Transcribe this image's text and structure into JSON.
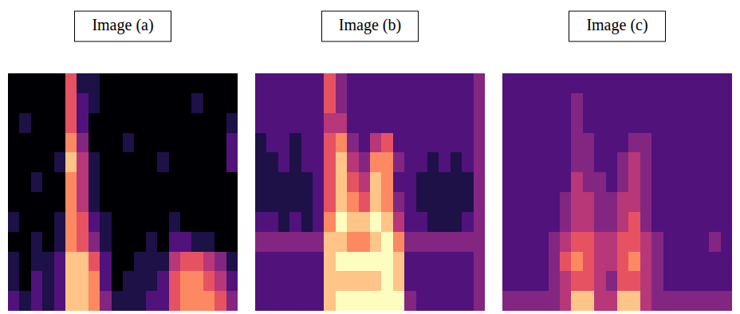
{
  "chart_data": [
    {
      "type": "heatmap",
      "title": "Image (a)",
      "tick_labels": false,
      "cells": [
        [
          1,
          1,
          1,
          1,
          1,
          6,
          2,
          2,
          1,
          1,
          1,
          1,
          1,
          1,
          1,
          1,
          1,
          1,
          1,
          1
        ],
        [
          1,
          1,
          1,
          1,
          1,
          6,
          3,
          2,
          1,
          1,
          1,
          1,
          1,
          1,
          1,
          1,
          2,
          1,
          1,
          1
        ],
        [
          1,
          2,
          1,
          1,
          1,
          6,
          3,
          1,
          1,
          1,
          1,
          1,
          1,
          1,
          1,
          1,
          1,
          1,
          1,
          2
        ],
        [
          1,
          1,
          1,
          1,
          1,
          7,
          4,
          1,
          1,
          1,
          2,
          1,
          1,
          1,
          1,
          1,
          1,
          1,
          1,
          3
        ],
        [
          1,
          1,
          1,
          1,
          2,
          8,
          5,
          2,
          1,
          1,
          1,
          1,
          1,
          2,
          1,
          1,
          1,
          1,
          1,
          3
        ],
        [
          1,
          1,
          2,
          1,
          1,
          7,
          5,
          2,
          1,
          1,
          1,
          1,
          1,
          1,
          1,
          1,
          1,
          1,
          1,
          1
        ],
        [
          1,
          1,
          1,
          1,
          1,
          7,
          5,
          2,
          1,
          1,
          1,
          1,
          1,
          1,
          1,
          1,
          1,
          1,
          1,
          1
        ],
        [
          2,
          1,
          1,
          1,
          2,
          7,
          6,
          3,
          2,
          1,
          1,
          1,
          1,
          1,
          2,
          1,
          1,
          1,
          1,
          1
        ],
        [
          1,
          1,
          2,
          1,
          2,
          7,
          6,
          4,
          2,
          1,
          1,
          1,
          2,
          1,
          3,
          3,
          2,
          2,
          1,
          1
        ],
        [
          2,
          1,
          2,
          2,
          3,
          8,
          8,
          6,
          3,
          1,
          1,
          2,
          2,
          2,
          5,
          6,
          6,
          5,
          4,
          2
        ],
        [
          2,
          1,
          3,
          2,
          3,
          8,
          8,
          7,
          3,
          1,
          2,
          2,
          2,
          3,
          6,
          7,
          7,
          6,
          5,
          3
        ],
        [
          3,
          2,
          3,
          2,
          3,
          8,
          8,
          7,
          4,
          2,
          2,
          2,
          3,
          3,
          6,
          7,
          7,
          7,
          6,
          4
        ]
      ]
    },
    {
      "type": "heatmap",
      "title": "Image (b)",
      "tick_labels": false,
      "cells": [
        [
          3,
          3,
          3,
          3,
          3,
          3,
          6,
          4,
          3,
          3,
          3,
          3,
          3,
          3,
          3,
          3,
          3,
          3,
          3,
          4
        ],
        [
          3,
          3,
          3,
          3,
          3,
          3,
          6,
          4,
          3,
          3,
          3,
          3,
          3,
          3,
          3,
          3,
          3,
          3,
          3,
          4
        ],
        [
          3,
          3,
          3,
          3,
          3,
          3,
          5,
          5,
          3,
          3,
          3,
          3,
          3,
          3,
          3,
          3,
          3,
          3,
          3,
          4
        ],
        [
          2,
          3,
          3,
          2,
          3,
          3,
          6,
          7,
          4,
          3,
          5,
          6,
          3,
          3,
          3,
          3,
          3,
          3,
          3,
          4
        ],
        [
          2,
          2,
          3,
          2,
          3,
          3,
          6,
          8,
          5,
          4,
          7,
          7,
          4,
          3,
          3,
          2,
          3,
          2,
          3,
          4
        ],
        [
          2,
          2,
          2,
          2,
          2,
          3,
          6,
          8,
          6,
          5,
          8,
          7,
          3,
          3,
          2,
          2,
          2,
          2,
          2,
          4
        ],
        [
          2,
          2,
          2,
          2,
          2,
          3,
          6,
          8,
          7,
          6,
          8,
          7,
          4,
          3,
          2,
          2,
          2,
          2,
          2,
          4
        ],
        [
          3,
          3,
          2,
          3,
          2,
          3,
          7,
          9,
          8,
          8,
          9,
          8,
          5,
          3,
          3,
          2,
          2,
          2,
          3,
          4
        ],
        [
          4,
          4,
          4,
          4,
          4,
          4,
          8,
          8,
          7,
          7,
          8,
          9,
          7,
          4,
          4,
          4,
          4,
          4,
          4,
          4
        ],
        [
          3,
          3,
          3,
          3,
          3,
          3,
          8,
          9,
          9,
          9,
          9,
          9,
          8,
          3,
          3,
          3,
          3,
          3,
          3,
          4
        ],
        [
          3,
          3,
          3,
          3,
          3,
          3,
          8,
          8,
          8,
          8,
          8,
          9,
          8,
          3,
          3,
          3,
          3,
          3,
          3,
          4
        ],
        [
          3,
          3,
          3,
          3,
          3,
          3,
          8,
          9,
          9,
          9,
          9,
          9,
          9,
          4,
          3,
          3,
          3,
          3,
          3,
          4
        ]
      ]
    },
    {
      "type": "heatmap",
      "title": "Image (c)",
      "tick_labels": false,
      "cells": [
        [
          3,
          3,
          3,
          3,
          3,
          3,
          3,
          3,
          3,
          3,
          3,
          3,
          3,
          3,
          3,
          3,
          3,
          3,
          3,
          3
        ],
        [
          3,
          3,
          3,
          3,
          3,
          3,
          4,
          3,
          3,
          3,
          3,
          3,
          3,
          3,
          3,
          3,
          3,
          3,
          3,
          3
        ],
        [
          3,
          3,
          3,
          3,
          3,
          3,
          4,
          3,
          3,
          3,
          3,
          3,
          3,
          3,
          3,
          3,
          3,
          3,
          3,
          3
        ],
        [
          3,
          3,
          3,
          3,
          3,
          3,
          4,
          4,
          3,
          3,
          3,
          4,
          4,
          3,
          3,
          3,
          3,
          3,
          3,
          3
        ],
        [
          3,
          3,
          3,
          3,
          3,
          3,
          4,
          4,
          3,
          3,
          4,
          5,
          4,
          3,
          3,
          3,
          3,
          3,
          3,
          3
        ],
        [
          3,
          3,
          3,
          3,
          3,
          3,
          5,
          4,
          4,
          3,
          4,
          5,
          4,
          3,
          3,
          3,
          3,
          3,
          3,
          3
        ],
        [
          3,
          3,
          3,
          3,
          3,
          4,
          5,
          5,
          4,
          4,
          5,
          5,
          4,
          3,
          3,
          3,
          3,
          3,
          3,
          3
        ],
        [
          3,
          3,
          3,
          3,
          3,
          4,
          5,
          5,
          4,
          4,
          5,
          6,
          4,
          3,
          3,
          3,
          3,
          3,
          3,
          3
        ],
        [
          3,
          3,
          3,
          3,
          4,
          5,
          6,
          6,
          5,
          5,
          6,
          6,
          5,
          4,
          3,
          3,
          3,
          3,
          4,
          3
        ],
        [
          3,
          3,
          3,
          3,
          4,
          6,
          7,
          6,
          5,
          5,
          6,
          7,
          5,
          4,
          3,
          3,
          3,
          3,
          3,
          3
        ],
        [
          3,
          3,
          3,
          3,
          4,
          5,
          6,
          6,
          5,
          4,
          6,
          6,
          5,
          4,
          3,
          3,
          3,
          3,
          3,
          3
        ],
        [
          4,
          4,
          4,
          4,
          4,
          5,
          8,
          8,
          5,
          5,
          8,
          8,
          5,
          4,
          4,
          4,
          4,
          4,
          4,
          4
        ]
      ]
    }
  ]
}
